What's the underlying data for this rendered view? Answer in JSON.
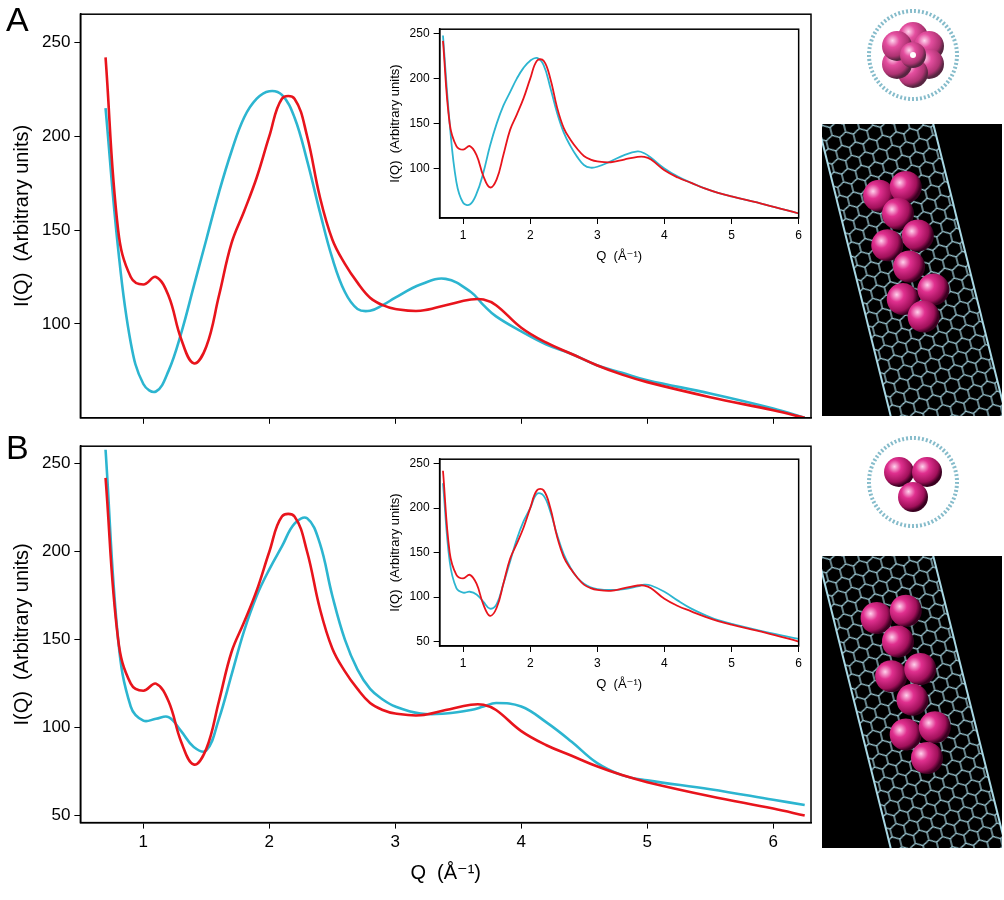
{
  "panels": [
    "A",
    "B"
  ],
  "chart_data": [
    {
      "type": "line",
      "y_label": "I(Q)  (Arbitrary units)",
      "x": [
        0.7,
        0.8,
        0.9,
        1.0,
        1.1,
        1.2,
        1.3,
        1.4,
        1.5,
        1.6,
        1.7,
        1.8,
        1.9,
        2.0,
        2.1,
        2.2,
        2.3,
        2.4,
        2.5,
        2.6,
        2.7,
        2.8,
        2.9,
        3.0,
        3.2,
        3.4,
        3.6,
        3.7,
        3.8,
        4.0,
        4.2,
        4.4,
        4.6,
        4.8,
        5.0,
        5.5,
        6.0,
        6.25
      ],
      "series": [
        {
          "color": "#e8141c",
          "values": [
            242,
            150,
            125,
            121,
            125,
            115,
            92,
            79,
            88,
            115,
            143,
            160,
            178,
            200,
            220,
            220,
            200,
            168,
            145,
            132,
            122,
            114,
            110,
            108,
            107,
            110,
            113,
            113,
            110,
            98,
            90,
            84,
            78,
            73,
            69,
            61,
            54,
            50
          ]
        },
        {
          "color": "#2cb5d0",
          "values": [
            215,
            140,
            90,
            68,
            64,
            75,
            95,
            120,
            145,
            170,
            192,
            210,
            220,
            224,
            222,
            210,
            187,
            160,
            135,
            117,
            108,
            107,
            110,
            114,
            121,
            124,
            117,
            110,
            104,
            96,
            89,
            84,
            78,
            74,
            70,
            63,
            55,
            50
          ]
        }
      ],
      "xlim": [
        0.5,
        6.3
      ],
      "xticks": [
        1,
        2,
        3,
        4,
        5,
        6
      ],
      "ylim": [
        50,
        265
      ],
      "yticks": [
        100,
        150,
        200,
        250
      ],
      "grid": false,
      "tick_labels": "y"
    },
    {
      "type": "line",
      "x_label": "Q  (Å⁻¹)",
      "y_label": "I(Q)  (Arbitrary units)",
      "x": [
        0.7,
        0.8,
        0.9,
        1.0,
        1.1,
        1.2,
        1.3,
        1.4,
        1.5,
        1.6,
        1.7,
        1.8,
        1.9,
        2.0,
        2.1,
        2.2,
        2.3,
        2.4,
        2.5,
        2.6,
        2.7,
        2.8,
        2.9,
        3.0,
        3.2,
        3.4,
        3.6,
        3.7,
        3.8,
        4.0,
        4.2,
        4.4,
        4.6,
        4.8,
        5.0,
        5.5,
        6.0
      ],
      "series": [
        {
          "color": "#e8141c",
          "values": [
            242,
            150,
            125,
            121,
            125,
            115,
            92,
            79,
            88,
            115,
            143,
            160,
            178,
            200,
            220,
            220,
            200,
            168,
            145,
            132,
            122,
            114,
            110,
            108,
            107,
            110,
            113,
            113,
            110,
            98,
            90,
            84,
            78,
            73,
            69,
            60,
            50
          ]
        },
        {
          "color": "#2cb5d0",
          "values": [
            248,
            150,
            85,
            62,
            60,
            72,
            95,
            125,
            150,
            170,
            185,
            200,
            212,
            220,
            223,
            215,
            190,
            162,
            140,
            125,
            113,
            104,
            101,
            102,
            108,
            115,
            119,
            117,
            112,
            100,
            91,
            84,
            78,
            73,
            69,
            60,
            50
          ]
        }
      ],
      "xlim": [
        0.65,
        6.0
      ],
      "xticks": [
        1,
        2,
        3,
        4,
        5,
        6
      ],
      "ylim": [
        45,
        255
      ],
      "yticks": [
        100,
        150,
        200,
        250
      ],
      "grid": false
    },
    {
      "type": "line",
      "x_label": "Q  (Å⁻¹)",
      "y_label": "I(Q)  (Arbitrary units)",
      "x": [
        0.7,
        0.8,
        0.9,
        1.0,
        1.1,
        1.2,
        1.3,
        1.4,
        1.5,
        1.6,
        1.7,
        1.8,
        1.9,
        2.0,
        2.1,
        2.2,
        2.3,
        2.4,
        2.5,
        2.6,
        2.7,
        2.8,
        2.9,
        3.0,
        3.2,
        3.4,
        3.6,
        3.7,
        3.8,
        4.0,
        4.2,
        4.4,
        4.6,
        4.8,
        5.0,
        5.5,
        6.0,
        6.25
      ],
      "series": [
        {
          "color": "#e8141c",
          "values": [
            242,
            150,
            125,
            121,
            125,
            115,
            92,
            79,
            88,
            115,
            143,
            160,
            178,
            200,
            220,
            220,
            200,
            168,
            145,
            132,
            122,
            114,
            110,
            108,
            107,
            110,
            113,
            113,
            110,
            98,
            90,
            84,
            78,
            73,
            69,
            61,
            54,
            50
          ]
        },
        {
          "color": "#2cb5d0",
          "values": [
            258,
            150,
            112,
            104,
            105,
            106,
            98,
            89,
            87,
            105,
            130,
            155,
            175,
            190,
            203,
            216,
            219,
            205,
            175,
            150,
            133,
            122,
            116,
            112,
            108,
            108,
            110,
            112,
            114,
            112,
            103,
            92,
            80,
            73,
            70,
            65,
            59,
            56
          ]
        }
      ],
      "xlim": [
        0.5,
        6.3
      ],
      "xticks": [
        1,
        2,
        3,
        4,
        5,
        6
      ],
      "ylim": [
        46,
        260
      ],
      "yticks": [
        50,
        100,
        150,
        200,
        250
      ],
      "grid": false
    },
    {
      "type": "line",
      "x_label": "Q  (Å⁻¹)",
      "y_label": "I(Q)  (Arbitrary units)",
      "x": [
        0.7,
        0.8,
        0.9,
        1.0,
        1.1,
        1.2,
        1.3,
        1.4,
        1.5,
        1.6,
        1.7,
        1.8,
        1.9,
        2.0,
        2.1,
        2.2,
        2.3,
        2.4,
        2.5,
        2.6,
        2.7,
        2.8,
        2.9,
        3.0,
        3.2,
        3.4,
        3.6,
        3.7,
        3.8,
        4.0,
        4.2,
        4.4,
        4.6,
        4.8,
        5.0,
        5.5,
        6.0
      ],
      "series": [
        {
          "color": "#e8141c",
          "values": [
            242,
            150,
            125,
            121,
            125,
            115,
            92,
            79,
            88,
            115,
            143,
            160,
            178,
            200,
            220,
            220,
            200,
            168,
            145,
            132,
            122,
            114,
            110,
            108,
            107,
            110,
            113,
            113,
            110,
            98,
            90,
            84,
            78,
            73,
            69,
            60,
            50
          ]
        },
        {
          "color": "#2cb5d0",
          "values": [
            228,
            140,
            110,
            105,
            106,
            103,
            95,
            87,
            92,
            115,
            140,
            165,
            185,
            200,
            216,
            214,
            196,
            170,
            148,
            133,
            122,
            115,
            111,
            109,
            108,
            109,
            112,
            114,
            113,
            106,
            96,
            87,
            80,
            74,
            70,
            61,
            53
          ]
        }
      ],
      "xlim": [
        0.65,
        6.0
      ],
      "xticks": [
        1,
        2,
        3,
        4,
        5,
        6
      ],
      "ylim": [
        45,
        255
      ],
      "yticks": [
        50,
        100,
        150,
        200,
        250
      ],
      "grid": false
    }
  ]
}
